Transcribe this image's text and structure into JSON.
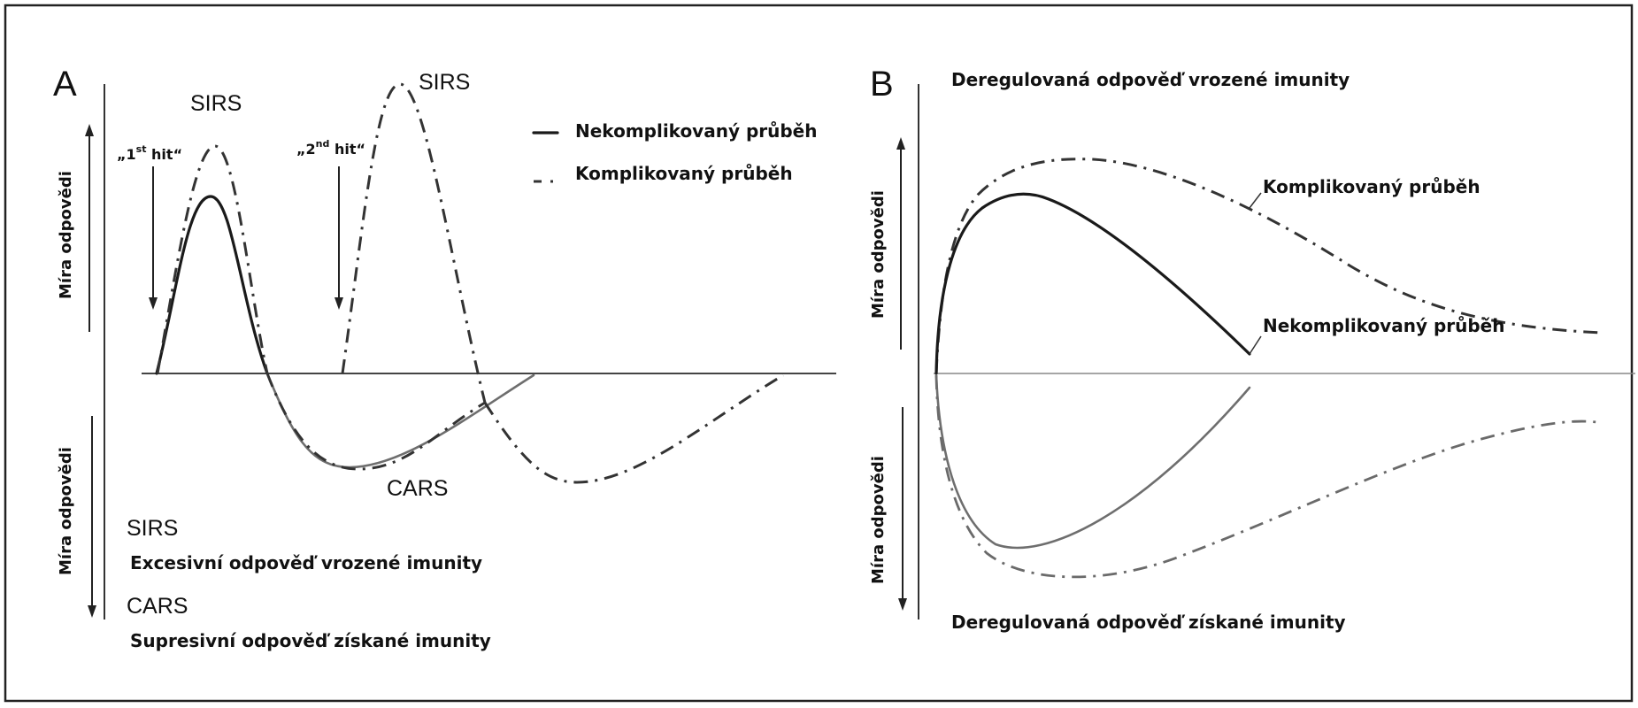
{
  "panel_a": {
    "letter": "A",
    "sirs_peak1": "SIRS",
    "sirs_peak2": "SIRS",
    "hit1_open": "„1",
    "hit1_sup": "st",
    "hit1_close": " hit“",
    "hit2_open": "„2",
    "hit2_sup": "nd",
    "hit2_close": " hit“",
    "legend_solid": "Nekomplikovaný průběh",
    "legend_dashdot": "Komplikovaný průběh",
    "cars_trough": "CARS",
    "axis_up": "Míra odpovědi",
    "axis_down": "Míra odpovědi",
    "key_sirs_term": "SIRS",
    "key_sirs_desc": "Excesivní odpověď vrozené imunity",
    "key_cars_term": "CARS",
    "key_cars_desc": "Supresivní odpověď získané imunity"
  },
  "panel_b": {
    "letter": "B",
    "top_label": "Deregulovaná odpověď vrozené imunity",
    "bottom_label": "Deregulovaná odpověď získané imunity",
    "curve_complicated": "Komplikovaný průběh",
    "curve_uncomplicated": "Nekomplikovaný průběh",
    "axis_up": "Míra odpovědi",
    "axis_down": "Míra odpovědi"
  }
}
